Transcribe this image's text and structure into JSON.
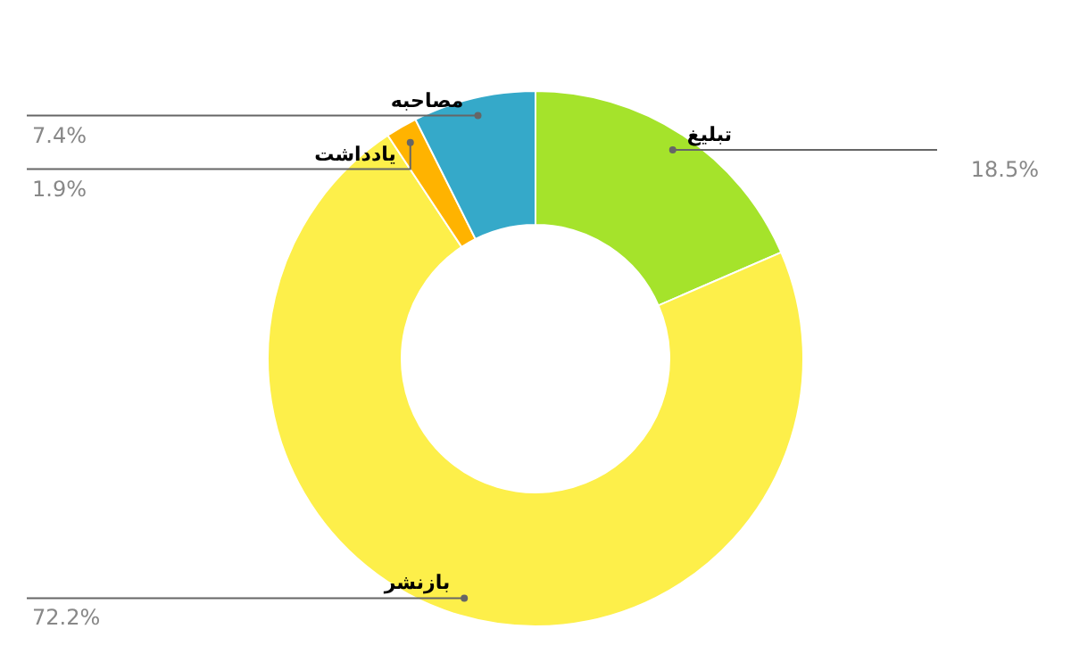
{
  "chart_data": {
    "type": "donut",
    "categories": [
      "تبلیغ",
      "بازنشر",
      "یادداشت",
      "مصاحبه"
    ],
    "values": [
      18.5,
      72.2,
      1.9,
      7.4
    ],
    "colors": [
      "#a5e32b",
      "#fdef4a",
      "#ffb300",
      "#35a9c9"
    ],
    "value_labels": [
      "18.5%",
      "72.2%",
      "1.9%",
      "7.4%"
    ]
  }
}
